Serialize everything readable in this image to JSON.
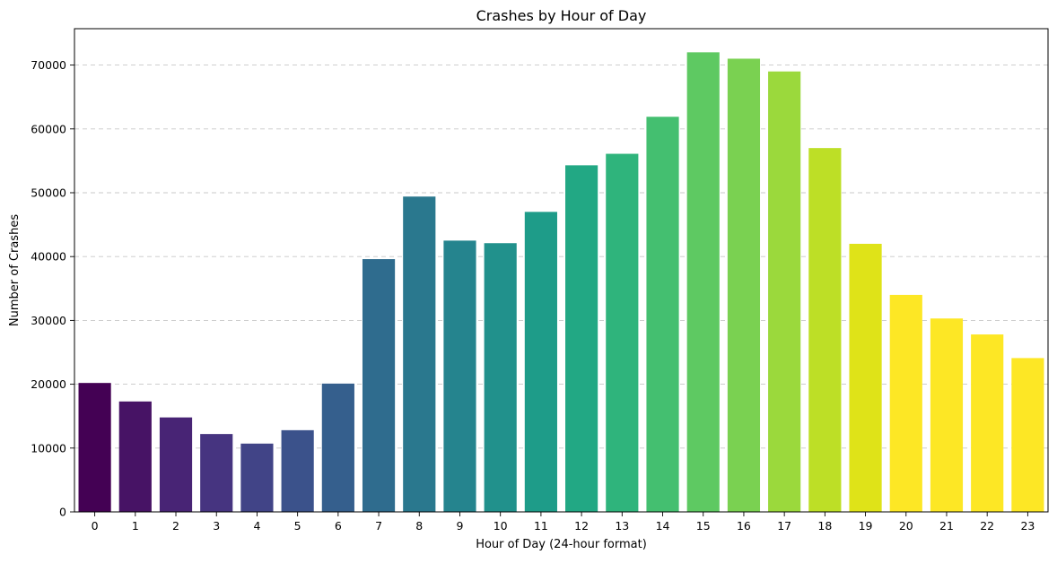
{
  "chart_data": {
    "type": "bar",
    "title": "Crashes by Hour of Day",
    "xlabel": "Hour of Day (24-hour format)",
    "ylabel": "Number of Crashes",
    "categories": [
      "0",
      "1",
      "2",
      "3",
      "4",
      "5",
      "6",
      "7",
      "8",
      "9",
      "10",
      "11",
      "12",
      "13",
      "14",
      "15",
      "16",
      "17",
      "18",
      "19",
      "20",
      "21",
      "22",
      "23"
    ],
    "values": [
      20200,
      17300,
      14800,
      12200,
      10700,
      12800,
      20100,
      39600,
      49400,
      42500,
      42100,
      47000,
      54300,
      56100,
      61900,
      72000,
      71000,
      69000,
      57000,
      42000,
      34000,
      30300,
      27800,
      24100
    ],
    "ylim": [
      0,
      75700
    ],
    "yticks": [
      0,
      10000,
      20000,
      30000,
      40000,
      50000,
      60000,
      70000
    ],
    "ytick_labels": [
      "0",
      "10000",
      "20000",
      "30000",
      "40000",
      "50000",
      "60000",
      "70000"
    ],
    "grid": "y-dashed",
    "colors": [
      "#440154",
      "#471365",
      "#482475",
      "#463480",
      "#414487",
      "#3b528b",
      "#355f8d",
      "#2f6c8e",
      "#2a788e",
      "#25848e",
      "#21918c",
      "#1e9c89",
      "#22a884",
      "#2fb47c",
      "#44bf70",
      "#5ec962",
      "#7ad151",
      "#9bd93c",
      "#bddf26",
      "#dfe318",
      "#fde725",
      "#fde725",
      "#fde725",
      "#fde725"
    ]
  }
}
